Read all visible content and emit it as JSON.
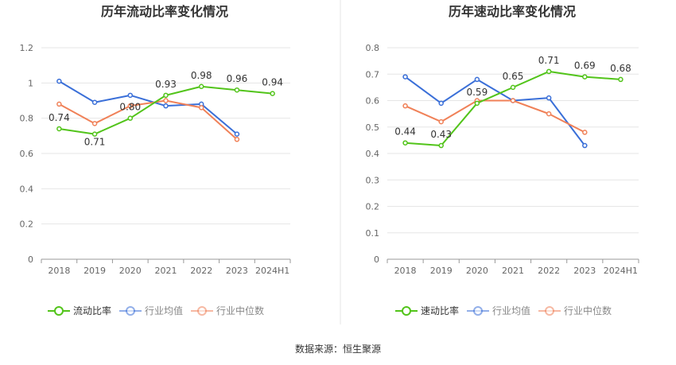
{
  "colors": {
    "primary": "#52c41a",
    "industry_avg": "#3a6fd8",
    "industry_median": "#f08158",
    "grid": "#e6e6e6",
    "divider": "#e6e6e6"
  },
  "source": "数据来源：恒生聚源",
  "chart_data": [
    {
      "type": "line",
      "title": "历年流动比率变化情况",
      "categories": [
        "2018",
        "2019",
        "2020",
        "2021",
        "2022",
        "2023",
        "2024H1"
      ],
      "ylim": [
        0,
        1.2
      ],
      "yticks": [
        "0",
        "0.2",
        "0.4",
        "0.6",
        "0.8",
        "1",
        "1.2"
      ],
      "ytick_values": [
        0,
        0.2,
        0.4,
        0.6,
        0.8,
        1.0,
        1.2
      ],
      "grid": true,
      "legend_position": "bottom",
      "series": [
        {
          "name": "流动比率",
          "color": "#52c41a",
          "values": [
            0.74,
            0.71,
            0.8,
            0.93,
            0.98,
            0.96,
            0.94
          ],
          "labels": [
            "0.74",
            "0.71",
            "0.80",
            "0.93",
            "0.98",
            "0.96",
            "0.94"
          ]
        },
        {
          "name": "行业均值",
          "color": "#3a6fd8",
          "values": [
            1.01,
            0.89,
            0.93,
            0.87,
            0.88,
            0.71,
            null
          ]
        },
        {
          "name": "行业中位数",
          "color": "#f08158",
          "values": [
            0.88,
            0.77,
            0.87,
            0.9,
            0.86,
            0.68,
            null
          ]
        }
      ]
    },
    {
      "type": "line",
      "title": "历年速动比率变化情况",
      "categories": [
        "2018",
        "2019",
        "2020",
        "2021",
        "2022",
        "2023",
        "2024H1"
      ],
      "ylim": [
        0,
        0.8
      ],
      "yticks": [
        "0",
        "0.1",
        "0.2",
        "0.3",
        "0.4",
        "0.5",
        "0.6",
        "0.7",
        "0.8"
      ],
      "ytick_values": [
        0,
        0.1,
        0.2,
        0.3,
        0.4,
        0.5,
        0.6,
        0.7,
        0.8
      ],
      "grid": true,
      "legend_position": "bottom",
      "series": [
        {
          "name": "速动比率",
          "color": "#52c41a",
          "values": [
            0.44,
            0.43,
            0.59,
            0.65,
            0.71,
            0.69,
            0.68
          ],
          "labels": [
            "0.44",
            "0.43",
            "0.59",
            "0.65",
            "0.71",
            "0.69",
            "0.68"
          ]
        },
        {
          "name": "行业均值",
          "color": "#3a6fd8",
          "values": [
            0.69,
            0.59,
            0.68,
            0.6,
            0.61,
            0.43,
            null
          ]
        },
        {
          "name": "行业中位数",
          "color": "#f08158",
          "values": [
            0.58,
            0.52,
            0.6,
            0.6,
            0.55,
            0.48,
            null
          ]
        }
      ]
    }
  ]
}
